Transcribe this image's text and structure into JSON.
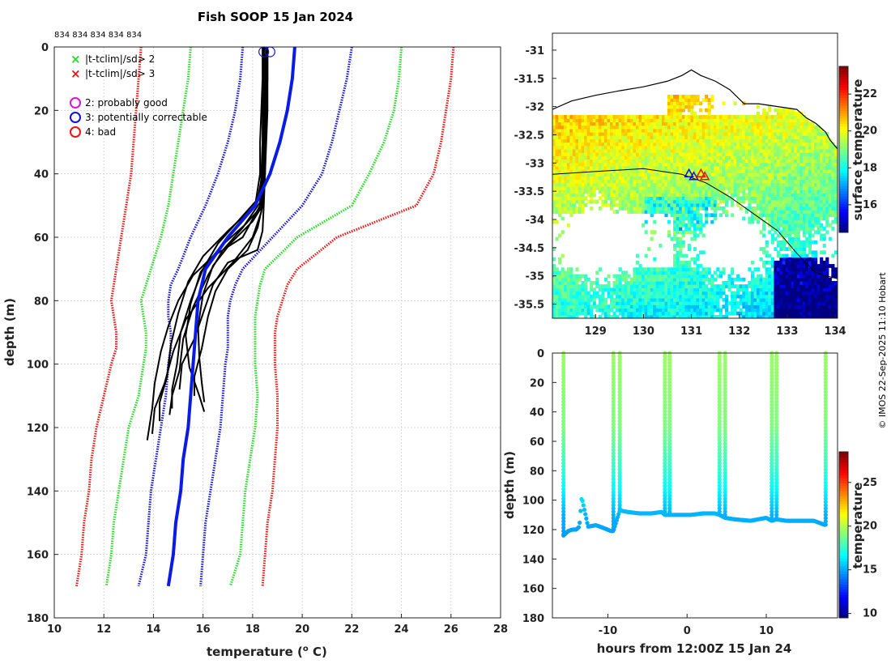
{
  "chart_data": [
    {
      "type": "line",
      "name": "profile",
      "title": "Fish SOOP 15 Jan 2024",
      "top_annotation": "834 834 834 834 834",
      "xlabel": "temperature (°C)",
      "xlabel_main": "temperature (",
      "xlabel_sup": "o",
      "xlabel_end": " C)",
      "ylabel": "depth (m)",
      "xlim": [
        10,
        28
      ],
      "ylim": [
        180,
        0
      ],
      "xticks": [
        10,
        12,
        14,
        16,
        18,
        20,
        22,
        24,
        26,
        28
      ],
      "yticks": [
        0,
        20,
        40,
        60,
        80,
        100,
        120,
        140,
        160,
        180
      ],
      "legend": [
        {
          "label": "|t-tclim|/sd> 2",
          "color": "#22dd22",
          "marker": "x"
        },
        {
          "label": "|t-tclim|/sd> 3",
          "color": "#ee1111",
          "marker": "x"
        },
        {
          "label": "2: probably good",
          "color": "#dd11dd",
          "marker": "o"
        },
        {
          "label": "3: potentially correctable",
          "color": "#1111dd",
          "marker": "o"
        },
        {
          "label": "4: bad",
          "color": "#ee1111",
          "marker": "o"
        }
      ],
      "climatology": {
        "depth": [
          0,
          10,
          20,
          30,
          40,
          50,
          60,
          70,
          75,
          80,
          85,
          90,
          95,
          100,
          110,
          120,
          130,
          140,
          150,
          160,
          170
        ],
        "lines": [
          {
            "name": "clim -3sd",
            "color": "#ee1111",
            "temp": [
              13.5,
              13.4,
              13.3,
              13.2,
              13.1,
              12.9,
              12.7,
              12.5,
              12.4,
              12.3,
              12.4,
              12.5,
              12.5,
              12.3,
              12.0,
              11.7,
              11.5,
              11.4,
              11.2,
              11.1,
              10.9
            ]
          },
          {
            "name": "clim -2sd",
            "color": "#22dd22",
            "temp": [
              15.5,
              15.4,
              15.2,
              15.0,
              14.8,
              14.6,
              14.3,
              13.9,
              13.7,
              13.5,
              13.6,
              13.7,
              13.7,
              13.6,
              13.4,
              13.0,
              12.8,
              12.6,
              12.4,
              12.3,
              12.1
            ]
          },
          {
            "name": "clim -1sd",
            "color": "#1111dd",
            "temp": [
              17.6,
              17.5,
              17.3,
              17.0,
              16.6,
              16.1,
              15.5,
              15.0,
              14.7,
              14.6,
              14.6,
              14.7,
              14.7,
              14.6,
              14.5,
              14.3,
              14.1,
              13.9,
              13.8,
              13.7,
              13.4
            ]
          },
          {
            "name": "clim +1sd",
            "color": "#1111dd",
            "temp": [
              22.0,
              21.8,
              21.5,
              21.2,
              20.8,
              20.0,
              18.8,
              17.6,
              17.3,
              17.1,
              17.0,
              17.0,
              17.0,
              16.9,
              16.8,
              16.7,
              16.5,
              16.3,
              16.1,
              16.0,
              15.9
            ]
          },
          {
            "name": "clim +2sd",
            "color": "#22dd22",
            "temp": [
              24.0,
              23.9,
              23.7,
              23.3,
              22.7,
              22.0,
              19.8,
              18.5,
              18.3,
              18.2,
              18.1,
              18.1,
              18.1,
              18.1,
              18.2,
              18.1,
              17.9,
              17.7,
              17.6,
              17.5,
              17.1
            ]
          },
          {
            "name": "clim +3sd",
            "color": "#ee1111",
            "temp": [
              26.1,
              26.0,
              25.8,
              25.6,
              25.3,
              24.6,
              21.4,
              19.8,
              19.4,
              19.2,
              19.0,
              18.9,
              18.9,
              18.9,
              19.0,
              19.0,
              18.9,
              18.8,
              18.6,
              18.5,
              18.4
            ]
          }
        ]
      },
      "mean_profile": {
        "name": "climatology mean",
        "color": "#0a1be6",
        "depth": [
          0,
          10,
          20,
          30,
          40,
          50,
          60,
          70,
          80,
          90,
          100,
          110,
          120,
          130,
          140,
          150,
          160,
          170
        ],
        "temp": [
          19.7,
          19.6,
          19.4,
          19.1,
          18.7,
          18.1,
          17.0,
          16.1,
          15.8,
          15.7,
          15.6,
          15.5,
          15.4,
          15.2,
          15.1,
          14.9,
          14.8,
          14.6
        ]
      },
      "observed_profiles": [
        {
          "depth": [
            0,
            10,
            20,
            30,
            40,
            48,
            55,
            62,
            70,
            80,
            90,
            100,
            108,
            114
          ],
          "temp": [
            18.5,
            18.5,
            18.45,
            18.45,
            18.4,
            18.2,
            17.4,
            16.6,
            16.0,
            15.5,
            15.1,
            14.9,
            14.8,
            14.7
          ]
        },
        {
          "depth": [
            0,
            10,
            20,
            30,
            40,
            49,
            57,
            64,
            72,
            82,
            92,
            102,
            110,
            116
          ],
          "temp": [
            18.6,
            18.6,
            18.55,
            18.5,
            18.45,
            18.3,
            17.6,
            16.8,
            16.2,
            15.6,
            15.2,
            15.0,
            14.8,
            14.6
          ]
        },
        {
          "depth": [
            0,
            10,
            20,
            30,
            40,
            50,
            58,
            66,
            74,
            84,
            94,
            104,
            112,
            118
          ],
          "temp": [
            18.4,
            18.4,
            18.35,
            18.3,
            18.3,
            18.1,
            17.0,
            16.0,
            15.4,
            15.0,
            14.7,
            14.5,
            14.3,
            14.2
          ]
        },
        {
          "depth": [
            0,
            10,
            20,
            30,
            40,
            52,
            60,
            68,
            76,
            86,
            96,
            106,
            114,
            122
          ],
          "temp": [
            18.5,
            18.5,
            18.5,
            18.45,
            18.4,
            18.35,
            18.0,
            17.2,
            16.2,
            15.3,
            14.8,
            14.4,
            14.1,
            13.9
          ]
        },
        {
          "depth": [
            0,
            10,
            20,
            30,
            40,
            50,
            56,
            63,
            71,
            81,
            91,
            101,
            110,
            115
          ],
          "temp": [
            18.55,
            18.55,
            18.5,
            18.5,
            18.45,
            18.4,
            17.7,
            16.7,
            15.9,
            15.5,
            15.3,
            15.4,
            15.9,
            16.0
          ]
        },
        {
          "depth": [
            0,
            10,
            20,
            30,
            40,
            50,
            55,
            62,
            69,
            78,
            88,
            98,
            106,
            112
          ],
          "temp": [
            18.6,
            18.6,
            18.6,
            18.55,
            18.5,
            18.4,
            18.0,
            17.1,
            16.4,
            16.0,
            15.8,
            15.8,
            16.0,
            16.0
          ]
        },
        {
          "depth": [
            0,
            10,
            20,
            30,
            40,
            50,
            60,
            66,
            72,
            80,
            88,
            96,
            106,
            114,
            124
          ],
          "temp": [
            18.45,
            18.45,
            18.4,
            18.4,
            18.35,
            18.3,
            17.6,
            16.4,
            15.6,
            15.0,
            14.6,
            14.3,
            14.1,
            13.9,
            13.8
          ]
        },
        {
          "depth": [
            0,
            10,
            20,
            30,
            40,
            50,
            57,
            64,
            70,
            77,
            85,
            95,
            104,
            110
          ],
          "temp": [
            18.5,
            18.5,
            18.5,
            18.5,
            18.45,
            18.4,
            18.2,
            17.8,
            17.0,
            16.5,
            16.2,
            15.9,
            15.7,
            15.6
          ]
        },
        {
          "depth": [
            0,
            10,
            20,
            30,
            40,
            50,
            58,
            64,
            68,
            75,
            84,
            92,
            100,
            108
          ],
          "temp": [
            18.55,
            18.55,
            18.55,
            18.5,
            18.5,
            18.45,
            18.4,
            18.2,
            17.0,
            16.4,
            16.0,
            15.6,
            15.2,
            15.0
          ]
        }
      ],
      "surface_markers_temp": [
        18.45,
        18.7
      ]
    },
    {
      "type": "heatmap",
      "name": "map",
      "colorbar_label": "surface temperature",
      "colorbar_ticks": [
        16,
        18,
        20,
        22
      ],
      "colorbar_range": [
        14.5,
        23.5
      ],
      "xlim": [
        128.1,
        134.05
      ],
      "ylim": [
        -35.75,
        -30.7
      ],
      "xticks": [
        129,
        130,
        131,
        132,
        133,
        134
      ],
      "yticks": [
        -31,
        -31.5,
        -32,
        -32.5,
        -33,
        -33.5,
        -34,
        -34.5,
        -35,
        -35.5
      ],
      "coastline": {
        "lon": [
          128.1,
          128.5,
          129.0,
          129.5,
          130.0,
          130.5,
          130.8,
          131.0,
          131.2,
          131.5,
          131.8,
          132.1,
          132.4,
          132.8,
          133.2,
          133.4,
          133.6,
          133.8,
          133.9,
          134.05
        ],
        "lat": [
          -32.05,
          -31.9,
          -31.8,
          -31.72,
          -31.65,
          -31.55,
          -31.45,
          -31.35,
          -31.45,
          -31.55,
          -31.7,
          -31.95,
          -31.95,
          -32.0,
          -32.05,
          -32.2,
          -32.3,
          -32.45,
          -32.6,
          -32.75
        ]
      },
      "ship_track": {
        "lon": [
          128.1,
          129.0,
          130.0,
          130.8,
          131.3,
          131.8,
          132.3,
          132.8,
          133.2,
          133.6,
          134.05
        ],
        "lat": [
          -33.2,
          -33.15,
          -33.1,
          -33.2,
          -33.35,
          -33.6,
          -33.9,
          -34.2,
          -34.6,
          -34.95,
          -35.05
        ]
      },
      "deployments": {
        "lon": [
          130.95,
          131.05,
          131.2,
          131.28
        ],
        "lat": [
          -33.2,
          -33.25,
          -33.2,
          -33.25
        ]
      }
    },
    {
      "type": "scatter",
      "name": "timeseries",
      "xlabel": "hours from 12:00Z 15 Jan 24",
      "ylabel": "depth (m)",
      "xlim": [
        -17,
        19
      ],
      "ylim": [
        180,
        0
      ],
      "xticks": [
        -10,
        0,
        10
      ],
      "yticks": [
        0,
        20,
        40,
        60,
        80,
        100,
        120,
        140,
        160,
        180
      ],
      "colorbar_label": "temperature",
      "colorbar_ticks": [
        10,
        15,
        20,
        25
      ],
      "colorbar_range": [
        9.5,
        28.5
      ],
      "casts": [
        {
          "hour": -15.6,
          "max_depth": 124
        },
        {
          "hour": -9.3,
          "max_depth": 121
        },
        {
          "hour": -8.5,
          "max_depth": 107
        },
        {
          "hour": -2.8,
          "max_depth": 110
        },
        {
          "hour": -2.2,
          "max_depth": 110
        },
        {
          "hour": 4.1,
          "max_depth": 110
        },
        {
          "hour": 4.8,
          "max_depth": 112
        },
        {
          "hour": 10.7,
          "max_depth": 114
        },
        {
          "hour": 11.3,
          "max_depth": 113
        },
        {
          "hour": 17.5,
          "max_depth": 117
        }
      ],
      "bottom_trace": {
        "hour": [
          -15.6,
          -15.0,
          -14.5,
          -14.0,
          -13.6,
          -13.3,
          -12.5,
          -11.5,
          -10.5,
          -9.6,
          -9.3,
          -8.5,
          -7.5,
          -6.0,
          -4.5,
          -3.2,
          -2.8,
          -2.2,
          -1.0,
          0.5,
          2.0,
          3.5,
          4.1,
          4.8,
          6.0,
          8.0,
          10.0,
          10.7,
          11.3,
          12.5,
          14.0,
          16.0,
          17.5
        ],
        "depth": [
          124,
          121,
          120,
          120,
          118,
          98,
          118,
          117,
          119,
          121,
          121,
          107,
          108,
          109,
          109,
          108,
          110,
          110,
          110,
          110,
          109,
          109,
          110,
          112,
          113,
          114,
          112,
          114,
          113,
          114,
          114,
          114,
          117
        ]
      },
      "temp_profile": {
        "depth": [
          0,
          50,
          80,
          100,
          110,
          125
        ],
        "temp": [
          19.5,
          19.0,
          17.5,
          16.0,
          15.2,
          14.8
        ]
      }
    }
  ],
  "watermark": "© IMOS 22-Sep-2025 11:10 Hobart"
}
